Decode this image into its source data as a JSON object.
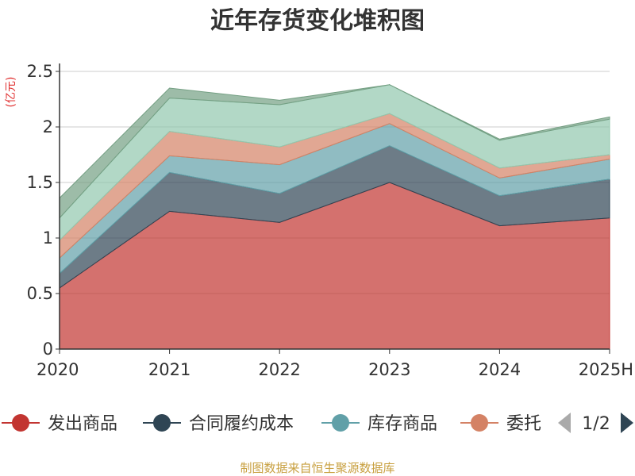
{
  "chart_data": {
    "type": "area",
    "stacked": true,
    "title": "近年存货变化堆积图",
    "unit_label": "(亿元)",
    "categories": [
      "2020",
      "2021",
      "2022",
      "2023",
      "2024",
      "2025H"
    ],
    "ylim": [
      0,
      2.5
    ],
    "yticks": [
      0,
      0.5,
      1,
      1.5,
      2,
      2.5
    ],
    "ytick_labels": [
      "0",
      "0.5",
      "1",
      "1.5",
      "2",
      "2.5"
    ],
    "grid": true,
    "legend_position": "bottom",
    "series": [
      {
        "name": "发出商品",
        "color": "#c23531",
        "values": [
          0.55,
          1.24,
          1.14,
          1.5,
          1.11,
          1.18
        ]
      },
      {
        "name": "合同履约成本",
        "color": "#2f4554",
        "values": [
          0.13,
          0.35,
          0.26,
          0.33,
          0.27,
          0.35
        ]
      },
      {
        "name": "库存商品",
        "color": "#61a0a8",
        "values": [
          0.14,
          0.15,
          0.26,
          0.2,
          0.16,
          0.18
        ]
      },
      {
        "name": "委托",
        "color": "#d48265",
        "values": [
          0.16,
          0.22,
          0.16,
          0.09,
          0.09,
          0.04
        ]
      },
      {
        "name": "",
        "color": "#91c7ae",
        "values": [
          0.2,
          0.3,
          0.38,
          0.26,
          0.25,
          0.32
        ]
      },
      {
        "name": "",
        "color": "#749f83",
        "values": [
          0.18,
          0.09,
          0.04,
          0.0,
          0.01,
          0.02
        ]
      }
    ],
    "legend_items": [
      "发出商品",
      "合同履约成本",
      "库存商品",
      "委托"
    ],
    "legend_page": "1/2"
  },
  "source_note": "制图数据来自恒生聚源数据库"
}
